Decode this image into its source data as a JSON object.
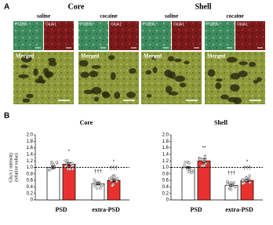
{
  "panel_a": {
    "label": "A",
    "regions": [
      {
        "title": "Core",
        "conditions": [
          {
            "name": "saline",
            "channels": [
              "PSD95",
              "GluA1"
            ],
            "merged": "Merged"
          },
          {
            "name": "cocaine",
            "channels": [
              "PSD95",
              "GluA1"
            ],
            "merged": "Merged"
          }
        ]
      },
      {
        "title": "Shell",
        "conditions": [
          {
            "name": "saline",
            "channels": [
              "PSD95",
              "GluA1"
            ],
            "merged": "Merged"
          },
          {
            "name": "cocaine",
            "channels": [
              "PSD95",
              "GluA1"
            ],
            "merged": "Merged"
          }
        ]
      }
    ]
  },
  "panel_b": {
    "label": "B"
  },
  "chart_data": [
    {
      "type": "bar",
      "title": "Core",
      "ylabel": [
        "GluA1 intensity",
        "(relative value)"
      ],
      "categories": [
        "PSD",
        "extra-PSD"
      ],
      "series": [
        {
          "color": "#ffffff",
          "values": [
            1.0,
            0.5
          ],
          "errors": [
            0.04,
            0.03
          ],
          "annotations": [
            [],
            [
              "†††"
            ]
          ]
        },
        {
          "color": "#e8312f",
          "values": [
            1.1,
            0.6
          ],
          "errors": [
            0.05,
            0.04
          ],
          "annotations": [
            [
              "*"
            ],
            [
              "†††",
              "*"
            ]
          ]
        }
      ],
      "ylim": [
        0,
        2
      ],
      "yticks": [
        0,
        0.2,
        0.4,
        0.6,
        0.8,
        {
          "value": 1,
          "label": "1.0"
        },
        1.2,
        1.4,
        1.6,
        1.8,
        {
          "value": 2,
          "label": "2.0"
        }
      ],
      "reference_line": 1
    },
    {
      "type": "bar",
      "title": "Shell",
      "categories": [
        "PSD",
        "extra-PSD"
      ],
      "series": [
        {
          "color": "#ffffff",
          "values": [
            1.0,
            0.45
          ],
          "errors": [
            0.03,
            0.03
          ],
          "annotations": [
            [],
            [
              "†††"
            ]
          ]
        },
        {
          "color": "#e8312f",
          "values": [
            1.2,
            0.6
          ],
          "errors": [
            0.06,
            0.04
          ],
          "annotations": [
            [
              "**"
            ],
            [
              "†††",
              "*"
            ]
          ]
        }
      ],
      "ylim": [
        0,
        2
      ],
      "yticks": [
        0,
        0.2,
        0.4,
        0.6,
        0.8,
        {
          "value": 1,
          "label": "1.0"
        },
        1.2,
        1.4,
        1.6,
        1.8,
        {
          "value": 2,
          "label": "2.0"
        }
      ],
      "reference_line": 1
    }
  ]
}
